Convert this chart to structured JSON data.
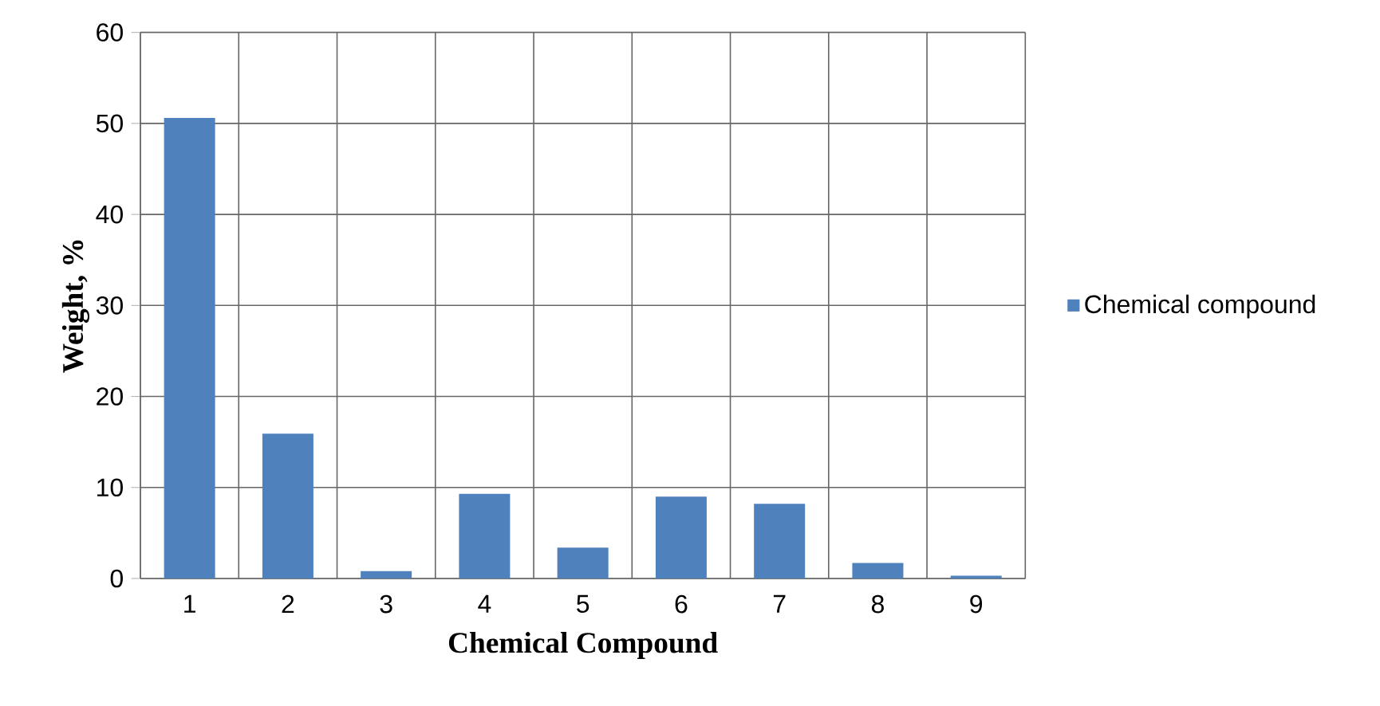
{
  "chart_data": {
    "type": "bar",
    "xlabel": "Chemical Compound",
    "ylabel": "Weight, %",
    "categories": [
      "1",
      "2",
      "3",
      "4",
      "5",
      "6",
      "7",
      "8",
      "9"
    ],
    "series": [
      {
        "name": "Chemical compound",
        "color": "#4f81bd",
        "values": [
          50.6,
          15.9,
          0.8,
          9.3,
          3.4,
          9.0,
          8.2,
          1.7,
          0.3
        ]
      }
    ],
    "ylim": [
      0,
      60
    ],
    "yticks": [
      0,
      10,
      20,
      30,
      40,
      50,
      60
    ],
    "grid": true,
    "legend": "right"
  }
}
